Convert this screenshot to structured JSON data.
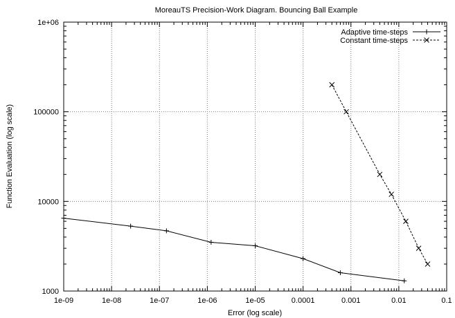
{
  "chart_data": {
    "type": "line",
    "title": "MoreauTS Precision-Work Diagram. Bouncing Ball Example",
    "xlabel": "Error (log scale)",
    "ylabel": "Function Evaluation  (log scale)",
    "xscale": "log",
    "yscale": "log",
    "xlim": [
      1e-09,
      0.1
    ],
    "ylim": [
      1000,
      1000000
    ],
    "grid": true,
    "legend_position": "top-right",
    "x_ticks": [
      {
        "value": 1e-09,
        "label": "1e-09"
      },
      {
        "value": 1e-08,
        "label": "1e-08"
      },
      {
        "value": 1e-07,
        "label": "1e-07"
      },
      {
        "value": 1e-06,
        "label": "1e-06"
      },
      {
        "value": 1e-05,
        "label": "1e-05"
      },
      {
        "value": 0.0001,
        "label": "0.0001"
      },
      {
        "value": 0.001,
        "label": "0.001"
      },
      {
        "value": 0.01,
        "label": "0.01"
      },
      {
        "value": 0.1,
        "label": "0.1"
      }
    ],
    "y_ticks": [
      {
        "value": 1000,
        "label": "1000"
      },
      {
        "value": 10000,
        "label": "10000"
      },
      {
        "value": 100000,
        "label": "100000"
      },
      {
        "value": 1000000,
        "label": "1e+06"
      }
    ],
    "series": [
      {
        "name": "Adaptive time-steps",
        "line_style": "solid",
        "marker": "+",
        "color": "#000000",
        "x": [
          1e-09,
          2.5e-08,
          1.4e-07,
          1.2e-06,
          1e-05,
          0.0001,
          0.0006,
          0.013
        ],
        "y": [
          6500,
          5300,
          4700,
          3500,
          3200,
          2300,
          1600,
          1300
        ]
      },
      {
        "name": "Constant time-steps",
        "line_style": "dashed",
        "marker": "x",
        "color": "#000000",
        "x": [
          0.0004,
          0.0008,
          0.004,
          0.007,
          0.014,
          0.026,
          0.04
        ],
        "y": [
          200000,
          100000,
          20000,
          12000,
          6000,
          3000,
          2000
        ]
      }
    ]
  }
}
